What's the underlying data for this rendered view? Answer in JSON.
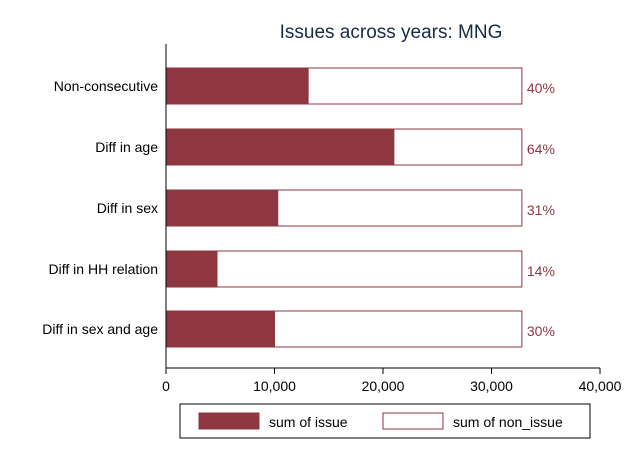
{
  "chart_data": {
    "type": "bar",
    "orientation": "horizontal",
    "stacked": true,
    "title": "Issues across years: MNG",
    "xlabel": "",
    "ylabel": "",
    "categories": [
      "Non-consecutive",
      "Diff in age",
      "Diff in sex",
      "Diff in HH relation",
      "Diff in sex and age"
    ],
    "series": [
      {
        "name": "sum of issue",
        "values": [
          13100,
          21000,
          10300,
          4700,
          10000
        ],
        "color": "#8e3740"
      },
      {
        "name": "sum of non_issue",
        "values": [
          19700,
          11800,
          22500,
          28100,
          22800
        ],
        "color": "#ffffff"
      }
    ],
    "bar_labels": [
      "40%",
      "64%",
      "31%",
      "14%",
      "30%"
    ],
    "xlim": [
      0,
      40000
    ],
    "xticks": [
      0,
      10000,
      20000,
      30000,
      40000
    ],
    "xtick_labels": [
      "0",
      "10,000",
      "20,000",
      "30,000",
      "40,000"
    ],
    "grid": false,
    "legend_position": "bottom",
    "colors": {
      "accent": "#8e3740",
      "title": "#1a2a45",
      "axis": "#000000"
    }
  }
}
